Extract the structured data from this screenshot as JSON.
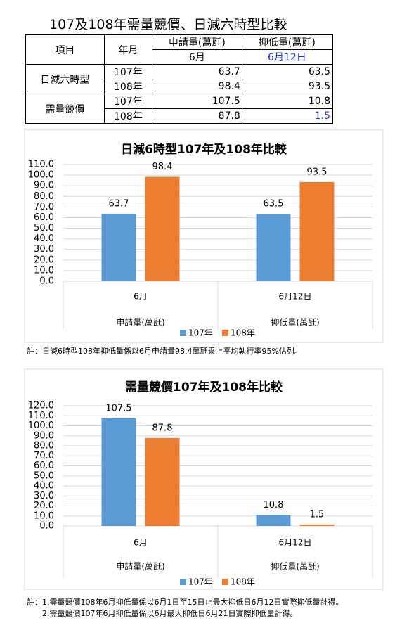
{
  "title": "107及108年需量競價、日減六時型比較",
  "table": {
    "header": [
      "項目",
      "年月",
      "申請量(萬瓩)",
      "抑低量(萬瓩)"
    ],
    "subheader": [
      "6月",
      "6月12日"
    ],
    "groups": [
      {
        "label": "日減六時型",
        "rows": [
          {
            "year": "107年",
            "values": [
              63.7,
              63.5
            ]
          },
          {
            "year": "108年",
            "values": [
              98.4,
              93.5
            ]
          }
        ]
      },
      {
        "label": "需量競價",
        "rows": [
          {
            "year": "107年",
            "values": [
              107.5,
              10.8
            ]
          },
          {
            "year": "108年",
            "values": [
              87.8,
              1.5
            ]
          }
        ]
      }
    ]
  },
  "chart_data": [
    {
      "type": "bar",
      "title": "日減6時型107年及108年比較",
      "categories": [
        "6月",
        "6月12日"
      ],
      "groups": [
        "申請量(萬瓩)",
        "抑低量(萬瓩)"
      ],
      "series": [
        {
          "name": "107年",
          "color": "#5b9bd5",
          "values": [
            63.7,
            63.5
          ]
        },
        {
          "name": "108年",
          "color": "#ed7d31",
          "values": [
            98.4,
            93.5
          ]
        }
      ],
      "ylim": [
        0,
        110
      ],
      "yticks": [
        {
          "value": 0,
          "label": "0.0"
        },
        {
          "value": 10,
          "label": "10.0"
        },
        {
          "value": 20,
          "label": "20.0"
        },
        {
          "value": 30,
          "label": "30.0"
        },
        {
          "value": 40,
          "label": "40.0"
        },
        {
          "value": 50,
          "label": "50.0"
        },
        {
          "value": 60,
          "label": "60.0"
        },
        {
          "value": 70,
          "label": "70.0"
        },
        {
          "value": 80,
          "label": "80.0"
        },
        {
          "value": 90,
          "label": "90.0"
        },
        {
          "value": 100,
          "label": "100.0"
        },
        {
          "value": 110,
          "label": "110.0"
        }
      ],
      "grid": true
    },
    {
      "type": "bar",
      "title": "需量競價107年及108年比較",
      "categories": [
        "6月",
        "6月12日"
      ],
      "groups": [
        "申請量(萬瓩)",
        "抑低量(萬瓩)"
      ],
      "series": [
        {
          "name": "107年",
          "color": "#5b9bd5",
          "values": [
            107.5,
            10.8
          ]
        },
        {
          "name": "108年",
          "color": "#ed7d31",
          "values": [
            87.8,
            1.5
          ]
        }
      ],
      "ylim": [
        0,
        120
      ],
      "yticks": [
        {
          "value": 0,
          "label": "0.0"
        },
        {
          "value": 10,
          "label": "10.0"
        },
        {
          "value": 20,
          "label": "20.0"
        },
        {
          "value": 30,
          "label": "30.0"
        },
        {
          "value": 40,
          "label": "40.0"
        },
        {
          "value": 50,
          "label": "50.0"
        },
        {
          "value": 60,
          "label": "60.0"
        },
        {
          "value": 70,
          "label": "70.0"
        },
        {
          "value": 80,
          "label": "80.0"
        },
        {
          "value": 90,
          "label": "90.0"
        },
        {
          "value": 100,
          "label": "100.0"
        },
        {
          "value": 110,
          "label": "110.0"
        },
        {
          "value": 120,
          "label": "120.0"
        }
      ],
      "grid": true
    }
  ],
  "notes": [
    "註：日減6時型108年抑低量係以6月申請量98.4萬瓩乘上平均執行率95%估列。",
    "註：1.需量競價108年6月抑低量係以6月1日至15日止最大抑低日6月12日實際抑低量計得。",
    "2.需量競價107年6月抑低量係以6月最大抑低日6月21日實際抑低量計得。"
  ]
}
